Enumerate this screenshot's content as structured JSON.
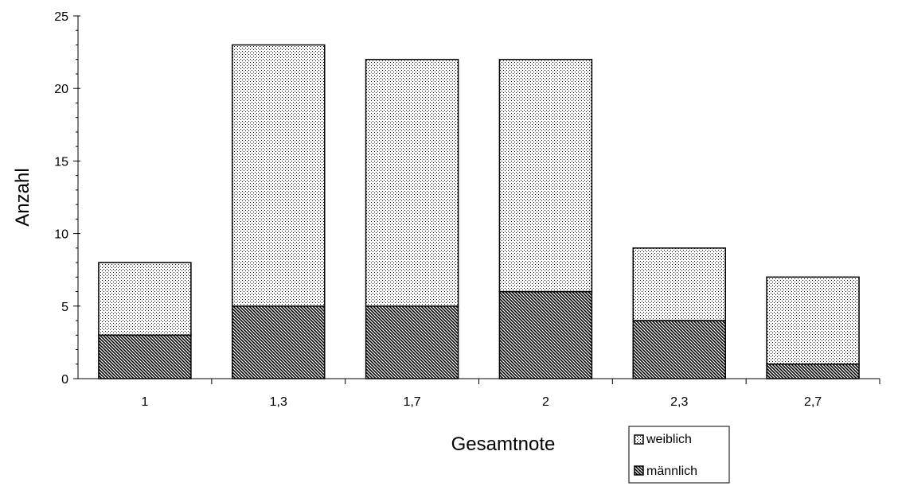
{
  "chart_data": {
    "type": "bar",
    "stacked": true,
    "categories": [
      "1",
      "1,3",
      "1,7",
      "2",
      "2,3",
      "2,7"
    ],
    "series": [
      {
        "name": "männlich",
        "values": [
          3,
          5,
          5,
          6,
          4,
          1
        ],
        "pattern": "diagonal-hatch"
      },
      {
        "name": "weiblich",
        "values": [
          5,
          18,
          17,
          16,
          5,
          6
        ],
        "pattern": "dots"
      }
    ],
    "title": "",
    "xlabel": "Gesamtnote",
    "ylabel": "Anzahl",
    "ylim": [
      0,
      25
    ],
    "yticks": [
      "0",
      "5",
      "10",
      "15",
      "20",
      "25"
    ],
    "grid": false,
    "legend_position": "bottom-right",
    "legend": [
      "weiblich",
      "männlich"
    ]
  }
}
